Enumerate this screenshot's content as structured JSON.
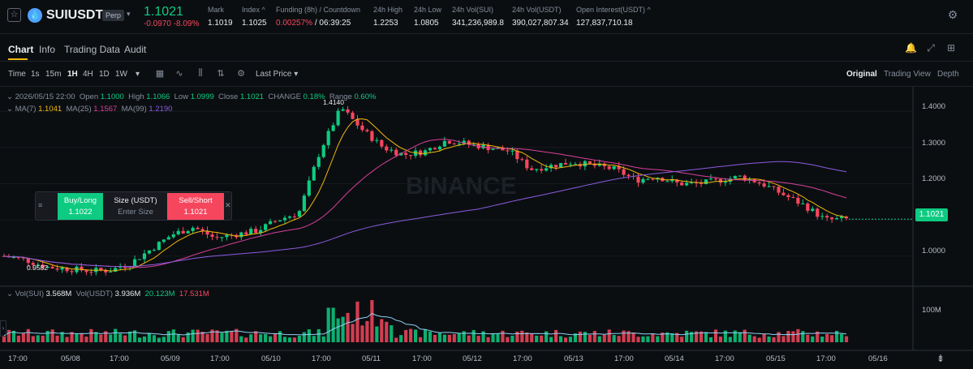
{
  "header": {
    "symbol": "SUIUSDT",
    "contract_type": "Perp",
    "last_price": "1.1021",
    "change": "-0.0970 -8.09%",
    "stats": [
      {
        "label": "Mark",
        "value": "1.1019"
      },
      {
        "label": "Index ^",
        "value": "1.1025"
      },
      {
        "label": "Funding (8h) / Countdown",
        "value_red": "0.00257%",
        "value_rest": " / 06:39:25"
      },
      {
        "label": "24h High",
        "value": "1.2253"
      },
      {
        "label": "24h Low",
        "value": "1.0805"
      },
      {
        "label": "24h Vol(SUI)",
        "value": "341,236,989.8"
      },
      {
        "label": "24h Vol(USDT)",
        "value": "390,027,807.34"
      },
      {
        "label": "Open Interest(USDT) ^",
        "value": "127,837,710.18"
      }
    ]
  },
  "tabs": [
    "Chart",
    "Info",
    "Trading Data",
    "Audit"
  ],
  "toolbar": {
    "intervals": [
      "Time",
      "1s",
      "15m",
      "1H",
      "4H",
      "1D",
      "1W"
    ],
    "active_interval": "1H",
    "price_type": "Last Price",
    "views": [
      "Original",
      "Trading View",
      "Depth"
    ],
    "active_view": "Original"
  },
  "ohlc": {
    "date": "2026/05/15 22:00",
    "open_label": "Open",
    "open": "1.1000",
    "high_label": "High",
    "high": "1.1066",
    "low_label": "Low",
    "low": "1.0999",
    "close_label": "Close",
    "close": "1.1021",
    "change_label": "CHANGE",
    "change": "0.18%",
    "range_label": "Range",
    "range": "0.60%",
    "ma7_label": "MA(7)",
    "ma7": "1.1041",
    "ma25_label": "MA(25)",
    "ma25": "1.1567",
    "ma99_label": "MA(99)",
    "ma99": "1.2190"
  },
  "order_panel": {
    "buy_label": "Buy/Long",
    "buy_price": "1.1022",
    "size_label": "Size (USDT)",
    "size_placeholder": "Enter Size",
    "sell_label": "Sell/Short",
    "sell_price": "1.1021"
  },
  "chart_data": {
    "type": "candlestick",
    "y_ticks": [
      "1.4000",
      "1.3000",
      "1.2000",
      "1.1000",
      "1.0000"
    ],
    "ylim": [
      0.93,
      1.45
    ],
    "x_ticks": [
      "17:00",
      "05/08",
      "17:00",
      "05/09",
      "17:00",
      "05/10",
      "17:00",
      "05/11",
      "17:00",
      "05/12",
      "17:00",
      "05/13",
      "17:00",
      "05/14",
      "17:00",
      "05/15",
      "17:00",
      "05/16"
    ],
    "current_price": "1.1021",
    "period_high": "1.4140",
    "period_low": "0.9582",
    "watermark": "BINANCE",
    "close_path": [
      1.0,
      0.99,
      0.97,
      0.965,
      0.96,
      0.96,
      0.98,
      1.02,
      1.06,
      1.08,
      1.05,
      1.06,
      1.07,
      1.1,
      1.12,
      1.29,
      1.41,
      1.35,
      1.3,
      1.28,
      1.29,
      1.32,
      1.31,
      1.3,
      1.29,
      1.24,
      1.25,
      1.26,
      1.25,
      1.24,
      1.21,
      1.22,
      1.2,
      1.2,
      1.21,
      1.22,
      1.2,
      1.17,
      1.14,
      1.1,
      1.102
    ]
  },
  "volume": {
    "label": "Vol(SUI)",
    "value_sui": "3.568M",
    "usdt_label": "Vol(USDT)",
    "value_usdt": "3.936M",
    "ma1": "20.123M",
    "ma2": "17.531M",
    "axis_label": "100M"
  },
  "colors": {
    "up": "#0ecb81",
    "down": "#f6465d",
    "ma7": "#f0b90b",
    "ma25": "#d9409c",
    "ma99": "#8a5cdf"
  }
}
